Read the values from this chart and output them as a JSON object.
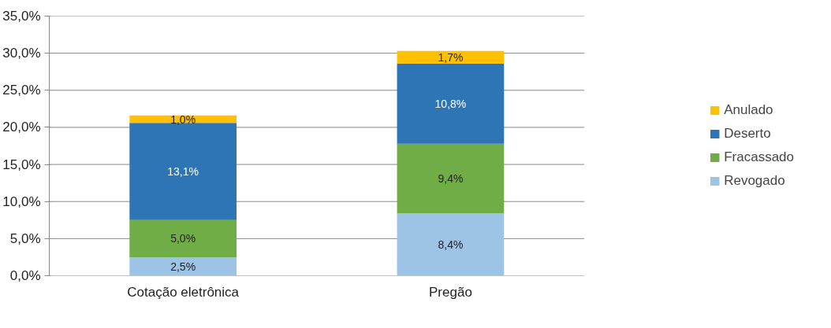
{
  "chart_data": {
    "type": "bar",
    "stacked": true,
    "categories": [
      "Cotação eletrônica",
      "Pregão"
    ],
    "series": [
      {
        "name": "Revogado",
        "color": "#9dc3e6",
        "values": [
          2.5,
          8.4
        ],
        "value_labels": [
          "2,5%",
          "8,4%"
        ]
      },
      {
        "name": "Fracassado",
        "color": "#70ad47",
        "values": [
          5.0,
          9.4
        ],
        "value_labels": [
          "5,0%",
          "9,4%"
        ]
      },
      {
        "name": "Deserto",
        "color": "#2e75b6",
        "values": [
          13.1,
          10.8
        ],
        "value_labels": [
          "13,1%",
          "10,8%"
        ]
      },
      {
        "name": "Anulado",
        "color": "#ffc000",
        "values": [
          1.0,
          1.7
        ],
        "value_labels": [
          "1,0%",
          "1,7%"
        ]
      }
    ],
    "ylim": [
      0,
      35
    ],
    "yticks": [
      {
        "value": 0,
        "label": "0,0%"
      },
      {
        "value": 5,
        "label": "5,0%"
      },
      {
        "value": 10,
        "label": "10,0%"
      },
      {
        "value": 15,
        "label": "15,0%"
      },
      {
        "value": 20,
        "label": "20,0%"
      },
      {
        "value": 25,
        "label": "25,0%"
      },
      {
        "value": 30,
        "label": "30,0%"
      },
      {
        "value": 35,
        "label": "35,0%"
      }
    ],
    "grid": "y",
    "legend": "right"
  }
}
